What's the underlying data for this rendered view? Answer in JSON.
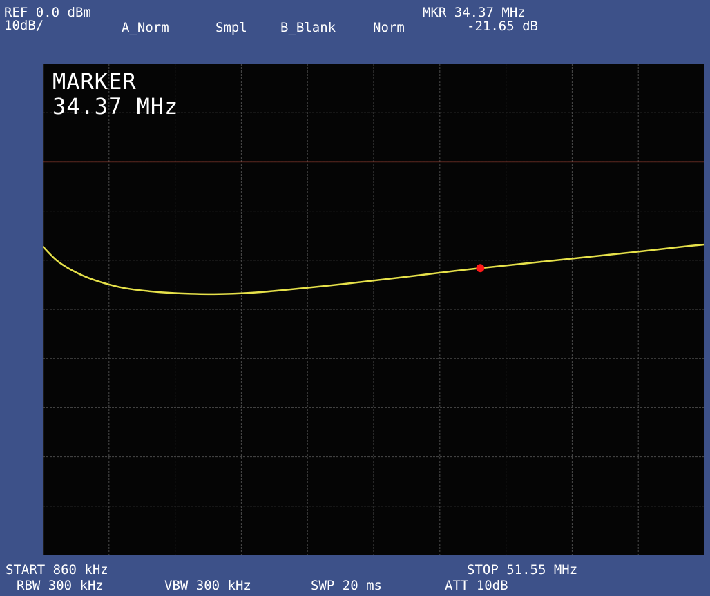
{
  "header": {
    "ref_level": "REF 0.0 dBm",
    "scale": "10dB/",
    "trace_a": "A_Norm",
    "detector": "Smpl",
    "trace_b": "B_Blank",
    "mode": "Norm",
    "marker_freq": "MKR 34.37 MHz",
    "marker_level": "-21.65 dB"
  },
  "overlay": {
    "marker_title": "MARKER",
    "marker_value": "34.37 MHz"
  },
  "footer": {
    "start": "START 860 kHz",
    "stop": "STOP 51.55 MHz",
    "rbw": "RBW 300 kHz",
    "vbw": "VBW 300 kHz",
    "sweep": "SWP 20 ms",
    "attenuation": "ATT 10dB"
  },
  "colors": {
    "frame": "#3d5189",
    "screen": "#050505",
    "grid": "#4a4a4a",
    "trace": "#e6e14a",
    "reference_line": "#b04a3a",
    "marker": "#ff1a1a"
  },
  "chart_data": {
    "type": "line",
    "x_unit": "MHz",
    "y_unit": "dB",
    "xlim": [
      0.86,
      51.55
    ],
    "ylim": [
      -100,
      0
    ],
    "grid": true,
    "grid_divisions": {
      "x": 10,
      "y": 10
    },
    "reference_line_dB": -20,
    "series": [
      {
        "x": [
          0.86,
          2.0,
          3.5,
          5.0,
          7.0,
          9.0,
          11.0,
          14.0,
          17.0,
          20.0,
          24.0,
          28.0,
          32.0,
          34.37,
          38.0,
          42.0,
          46.0,
          50.0,
          51.55
        ],
        "y": [
          -37.2,
          -40.2,
          -42.6,
          -44.2,
          -45.6,
          -46.3,
          -46.7,
          -46.9,
          -46.6,
          -45.9,
          -44.8,
          -43.6,
          -42.3,
          -41.6,
          -40.6,
          -39.5,
          -38.4,
          -37.2,
          -36.8
        ]
      }
    ],
    "marker": {
      "x": 34.37,
      "y": -41.6
    }
  }
}
